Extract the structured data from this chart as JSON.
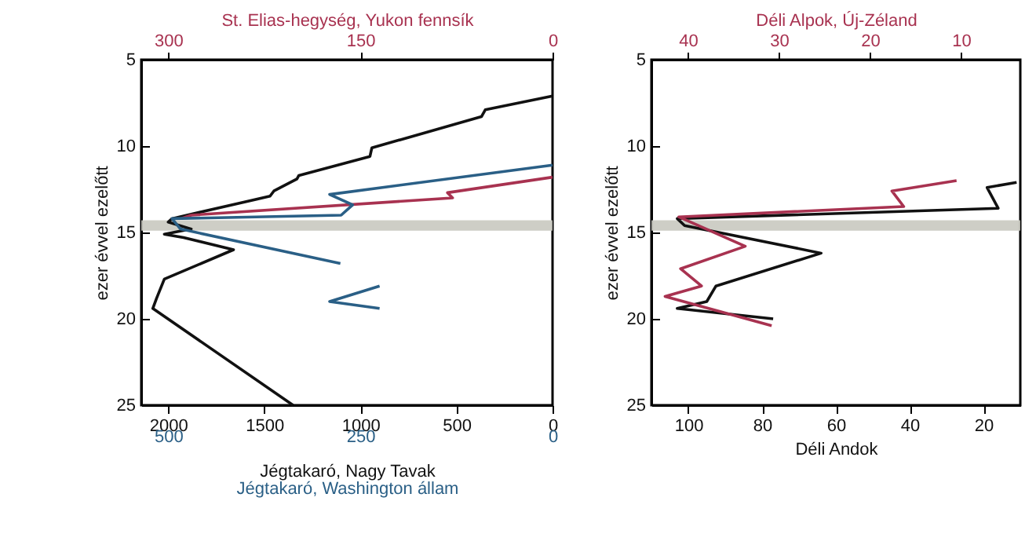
{
  "chart_data": [
    {
      "type": "line",
      "ylabel": "ezer évvel ezelőtt",
      "ylim": [
        25,
        5
      ],
      "yticks": [
        5,
        10,
        15,
        20,
        25
      ],
      "xlabel": "Jégtakaró, Nagy Tavak",
      "xlim": [
        2140,
        0
      ],
      "xticks": [
        2000,
        1500,
        1000,
        500,
        0
      ],
      "x2label": "St. Elias-hegység, Yukon fennsík",
      "x2lim": [
        321,
        0
      ],
      "x2ticks": [
        300,
        150,
        0
      ],
      "bands": [
        {
          "axis": "y",
          "from": 14.3,
          "to": 14.9,
          "color": "#c9c9c0"
        }
      ],
      "series": [
        {
          "color": "#111111",
          "x": [
            0,
            350,
            370,
            940,
            950,
            1320,
            1330,
            1450,
            1470,
            1980,
            2000,
            1880,
            2020,
            1920,
            1660,
            2020,
            2060,
            2080,
            1350
          ],
          "values": [
            7.1,
            7.9,
            8.3,
            10.1,
            10.6,
            11.7,
            11.9,
            12.6,
            12.9,
            14.2,
            14.4,
            14.8,
            15.1,
            15.3,
            16.0,
            17.7,
            18.8,
            19.4,
            25.0
          ]
        },
        {
          "color": "#a83250",
          "axis": "x2",
          "x": [
            0,
            82,
            78,
            282,
            290
          ],
          "values": [
            11.8,
            12.7,
            13.0,
            14.0,
            14.2
          ]
        }
      ]
    },
    {
      "type": "line",
      "xlabel": "Jégtakaró, Washington állam",
      "xlim": [
        535,
        0
      ],
      "xticks": [
        500,
        250,
        0
      ],
      "ylim": [
        25,
        5
      ],
      "tick_labels": "x",
      "series": [
        {
          "color": "#2a5f86",
          "x": [
            0,
            290,
            260,
            275,
            495,
            484,
            276,
            null,
            225,
            290,
            225
          ],
          "values": [
            11.1,
            12.8,
            13.4,
            14.0,
            14.2,
            14.8,
            16.8,
            null,
            18.1,
            19.0,
            19.4
          ]
        }
      ]
    },
    {
      "type": "line",
      "ylabel": "ezer évvel ezelőtt",
      "ylim": [
        25,
        5
      ],
      "yticks": [
        5,
        10,
        15,
        20,
        25
      ],
      "xlabel": "Déli Andok",
      "xlim": [
        110,
        10
      ],
      "xticks": [
        100,
        80,
        60,
        40,
        20
      ],
      "x2label": "Déli Alpok, Új-Zéland",
      "x2lim": [
        44,
        3.5
      ],
      "x2ticks": [
        40,
        30,
        20,
        10
      ],
      "bands": [
        {
          "axis": "y",
          "from": 14.3,
          "to": 14.9,
          "color": "#c9c9c0"
        }
      ],
      "series": [
        {
          "color": "#111111",
          "x": [
            11,
            19,
            16,
            103,
            101,
            64,
            92.5,
            95,
            103,
            77
          ],
          "values": [
            12.1,
            12.4,
            13.6,
            14.2,
            14.6,
            16.2,
            18.1,
            19.0,
            19.4,
            20.0
          ]
        },
        {
          "color": "#a83250",
          "axis": "x2",
          "x": [
            10.5,
            17.6,
            16.3,
            41,
            33.7,
            40.8,
            38.5,
            42.5,
            30.8
          ],
          "values": [
            12.0,
            12.6,
            13.5,
            14.1,
            15.8,
            17.1,
            18.1,
            18.7,
            20.4
          ]
        }
      ]
    }
  ]
}
